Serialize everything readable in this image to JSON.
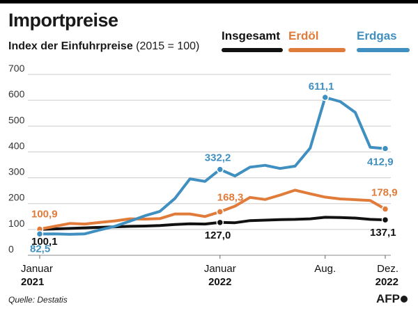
{
  "header": {
    "title": "Importpreise",
    "subtitle_main": "Index der Einfuhrpreise",
    "subtitle_note": "(2015 = 100)"
  },
  "footer": {
    "source": "Quelle: Destatis",
    "logo": "AFP"
  },
  "colors": {
    "insgesamt": "#111111",
    "erdoel": "#e07b39",
    "erdgas": "#3f8fc0",
    "grid": "#cccccc"
  },
  "chart_data": {
    "type": "line",
    "title": "Importpreise",
    "subtitle": "Index der Einfuhrpreise (2015 = 100)",
    "xlabel": "",
    "ylabel": "",
    "ylim": [
      0,
      700
    ],
    "yticks": [
      "0",
      "100",
      "200",
      "300",
      "400",
      "500",
      "600",
      "700"
    ],
    "grid": true,
    "legend_position": "top-right",
    "x": [
      "Jan 2021",
      "Feb 2021",
      "Mrz 2021",
      "Apr 2021",
      "Mai 2021",
      "Jun 2021",
      "Jul 2021",
      "Aug 2021",
      "Sep 2021",
      "Okt 2021",
      "Nov 2021",
      "Dez 2021",
      "Jan 2022",
      "Feb 2022",
      "Mrz 2022",
      "Apr 2022",
      "Mai 2022",
      "Jun 2022",
      "Jul 2022",
      "Aug 2022",
      "Sep 2022",
      "Okt 2022",
      "Nov 2022",
      "Dez 2022"
    ],
    "x_tick_labels": [
      {
        "index": 0,
        "line1": "Januar",
        "line2": "2021"
      },
      {
        "index": 12,
        "line1": "Januar",
        "line2": "2022"
      },
      {
        "index": 19,
        "line1": "Aug.",
        "line2": ""
      },
      {
        "index": 23,
        "line1": "Dez.",
        "line2": "2022"
      }
    ],
    "series": [
      {
        "name": "Insgesamt",
        "key": "insgesamt",
        "values": [
          100.1,
          102,
          104,
          106,
          108,
          110,
          112,
          113,
          115,
          119,
          122,
          121,
          127.0,
          126,
          134,
          136,
          138,
          139,
          141,
          147,
          146,
          144,
          139,
          137.1
        ]
      },
      {
        "name": "Erdöl",
        "key": "erdoel",
        "values": [
          100.9,
          112,
          123,
          121,
          127,
          133,
          141,
          140,
          142,
          160,
          160,
          150,
          168.3,
          190,
          224,
          216,
          233,
          252,
          238,
          225,
          218,
          215,
          212,
          178.9
        ]
      },
      {
        "name": "Erdgas",
        "key": "erdgas",
        "values": [
          82.5,
          83,
          81,
          83,
          98,
          112,
          132,
          153,
          170,
          220,
          296,
          286,
          332.2,
          307,
          341,
          348,
          336,
          345,
          415,
          611.1,
          595,
          553,
          418,
          412.9
        ]
      }
    ],
    "annotations": [
      {
        "series": "insgesamt",
        "index": 0,
        "text": "100,1",
        "dx": -12,
        "dy": 22
      },
      {
        "series": "erdoel",
        "index": 0,
        "text": "100,9",
        "dx": -12,
        "dy": -17
      },
      {
        "series": "erdgas",
        "index": 0,
        "text": "82,5",
        "dx": -14,
        "dy": 26
      },
      {
        "series": "insgesamt",
        "index": 12,
        "text": "127,0",
        "dx": -22,
        "dy": 23
      },
      {
        "series": "erdoel",
        "index": 12,
        "text": "168,3",
        "dx": -4,
        "dy": -16
      },
      {
        "series": "erdgas",
        "index": 12,
        "text": "332,2",
        "dx": -22,
        "dy": -12
      },
      {
        "series": "erdgas",
        "index": 19,
        "text": "611,1",
        "dx": -24,
        "dy": -11
      },
      {
        "series": "insgesamt",
        "index": 23,
        "text": "137,1",
        "dx": -22,
        "dy": 23
      },
      {
        "series": "erdoel",
        "index": 23,
        "text": "178,9",
        "dx": -20,
        "dy": -19
      },
      {
        "series": "erdgas",
        "index": 23,
        "text": "412,9",
        "dx": -26,
        "dy": 24
      }
    ]
  }
}
